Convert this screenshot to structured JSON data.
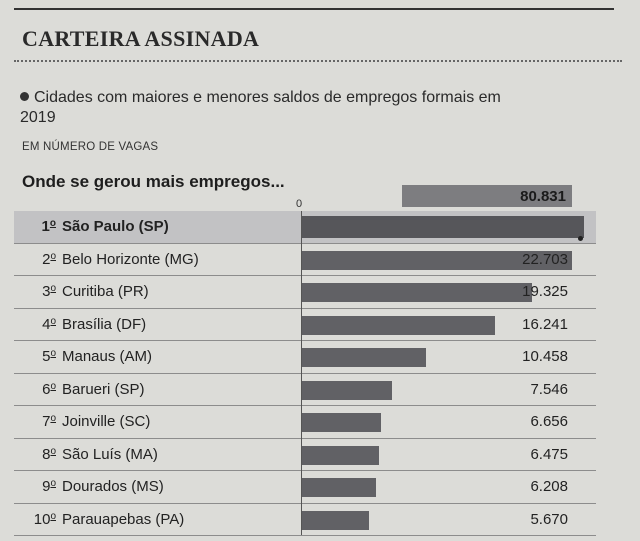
{
  "header": {
    "title": "CARTEIRA ASSINADA"
  },
  "subtitle": "Cidades com maiores e menores saldos de empregos formais em 2019",
  "unit_label": "EM NÚMERO DE VAGAS",
  "chart_heading": "Onde se gerou mais empregos...",
  "colors": {
    "bar": "#616165",
    "top_bar": "#7d7d80",
    "highlight_row": "#c2c2c4",
    "background": "#dcdcd8"
  },
  "chart_data": {
    "type": "bar",
    "orientation": "horizontal",
    "title": "Onde se gerou mais empregos...",
    "unit": "EM NÚMERO DE VAGAS",
    "axis_zero_label": "0",
    "xlim": [
      0,
      22703
    ],
    "top_value_label": "80.831",
    "rows": [
      {
        "rank": "1",
        "city": "São Paulo (SP)",
        "value": 80831,
        "label": "80.831",
        "truncated": true
      },
      {
        "rank": "2",
        "city": "Belo Horizonte (MG)",
        "value": 22703,
        "label": "22.703"
      },
      {
        "rank": "3",
        "city": "Curitiba (PR)",
        "value": 19325,
        "label": "19.325"
      },
      {
        "rank": "4",
        "city": "Brasília (DF)",
        "value": 16241,
        "label": "16.241"
      },
      {
        "rank": "5",
        "city": "Manaus (AM)",
        "value": 10458,
        "label": "10.458"
      },
      {
        "rank": "6",
        "city": "Barueri (SP)",
        "value": 7546,
        "label": "7.546"
      },
      {
        "rank": "7",
        "city": "Joinville (SC)",
        "value": 6656,
        "label": "6.656"
      },
      {
        "rank": "8",
        "city": "São Luís (MA)",
        "value": 6475,
        "label": "6.475"
      },
      {
        "rank": "9",
        "city": "Dourados (MS)",
        "value": 6208,
        "label": "6.208"
      },
      {
        "rank": "10",
        "city": "Parauapebas (PA)",
        "value": 5670,
        "label": "5.670"
      }
    ]
  }
}
